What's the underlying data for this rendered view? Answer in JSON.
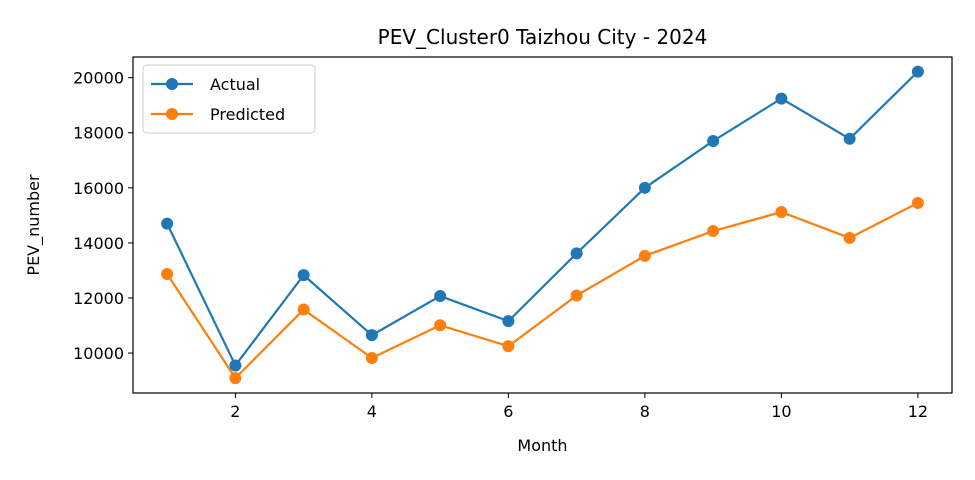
{
  "chart_data": {
    "type": "line",
    "title": "PEV_Cluster0 Taizhou City - 2024",
    "xlabel": "Month",
    "ylabel": "PEV_number",
    "xlim": [
      0.5,
      12.5
    ],
    "ylim": [
      8550,
      20750
    ],
    "x_ticks": [
      2,
      4,
      6,
      8,
      10,
      12
    ],
    "y_ticks": [
      10000,
      12000,
      14000,
      16000,
      18000,
      20000
    ],
    "x": [
      1,
      2,
      3,
      4,
      5,
      6,
      7,
      8,
      9,
      10,
      11,
      12
    ],
    "series": [
      {
        "name": "Actual",
        "color": "#1f77b4",
        "values": [
          14700,
          9550,
          12830,
          10650,
          12070,
          11160,
          13620,
          16000,
          17700,
          19240,
          17780,
          20220
        ]
      },
      {
        "name": "Predicted",
        "color": "#ff7f0e",
        "values": [
          12870,
          9090,
          11580,
          9820,
          11010,
          10250,
          12090,
          13530,
          14430,
          15120,
          14180,
          15450
        ]
      }
    ],
    "grid": false,
    "legend": "top-left"
  }
}
